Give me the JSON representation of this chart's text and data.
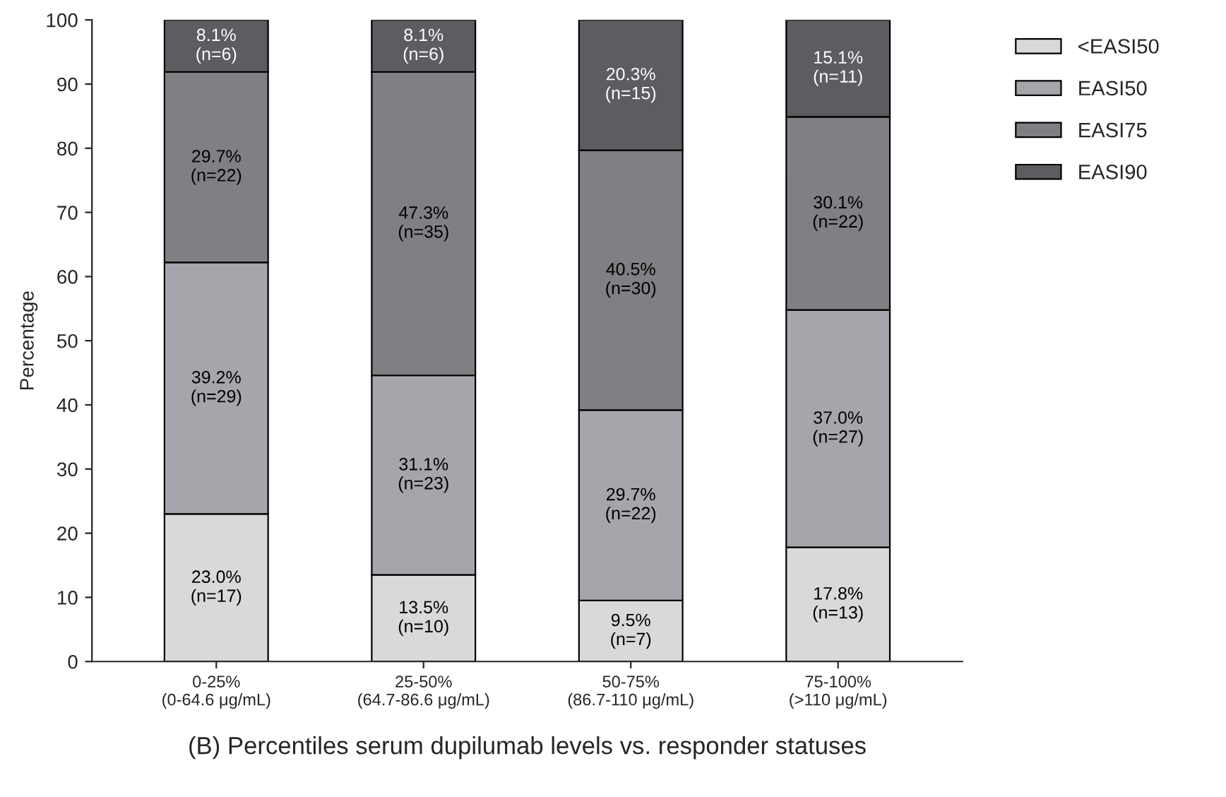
{
  "chart_data": {
    "type": "bar",
    "stacked": true,
    "xlabel": "(B) Percentiles serum dupilumab levels vs. responder statuses",
    "ylabel": "Percentage",
    "categories": [
      "0-25%\n(0-64.6 μg/mL)",
      "25-50%\n(64.7-86.6 μg/mL)",
      "50-75%\n(86.7-110 μg/mL)",
      "75-100%\n(>110 μg/mL)"
    ],
    "series": [
      {
        "name": "<EASI50",
        "color": "#d9d9d9",
        "values": [
          23.0,
          13.5,
          9.5,
          17.8
        ],
        "value_labels": [
          "23.0%\n(n=17)",
          "13.5%\n(n=10)",
          "9.5%\n(n=7)",
          "17.8%\n(n=13)"
        ]
      },
      {
        "name": "EASI50",
        "color": "#a5a5ab",
        "values": [
          39.2,
          31.1,
          29.7,
          37.0
        ],
        "value_labels": [
          "39.2%\n(n=29)",
          "31.1%\n(n=23)",
          "29.7%\n(n=22)",
          "37.0%\n(n=27)"
        ]
      },
      {
        "name": "EASI75",
        "color": "#808084",
        "values": [
          29.7,
          47.3,
          40.5,
          30.1
        ],
        "value_labels": [
          "29.7%\n(n=22)",
          "47.3%\n(n=35)",
          "40.5%\n(n=30)",
          "30.1%\n(n=22)"
        ]
      },
      {
        "name": "EASI90",
        "color": "#5c5c61",
        "values": [
          8.1,
          8.1,
          20.3,
          15.1
        ],
        "value_labels": [
          "8.1%\n(n=6)",
          "8.1%\n(n=6)",
          "20.3%\n(n=15)",
          "15.1%\n(n=11)"
        ]
      }
    ],
    "ylim": [
      0,
      100
    ],
    "yticks": [
      0,
      10,
      20,
      30,
      40,
      50,
      60,
      70,
      80,
      90,
      100
    ],
    "grid": false,
    "legend": "top right"
  }
}
